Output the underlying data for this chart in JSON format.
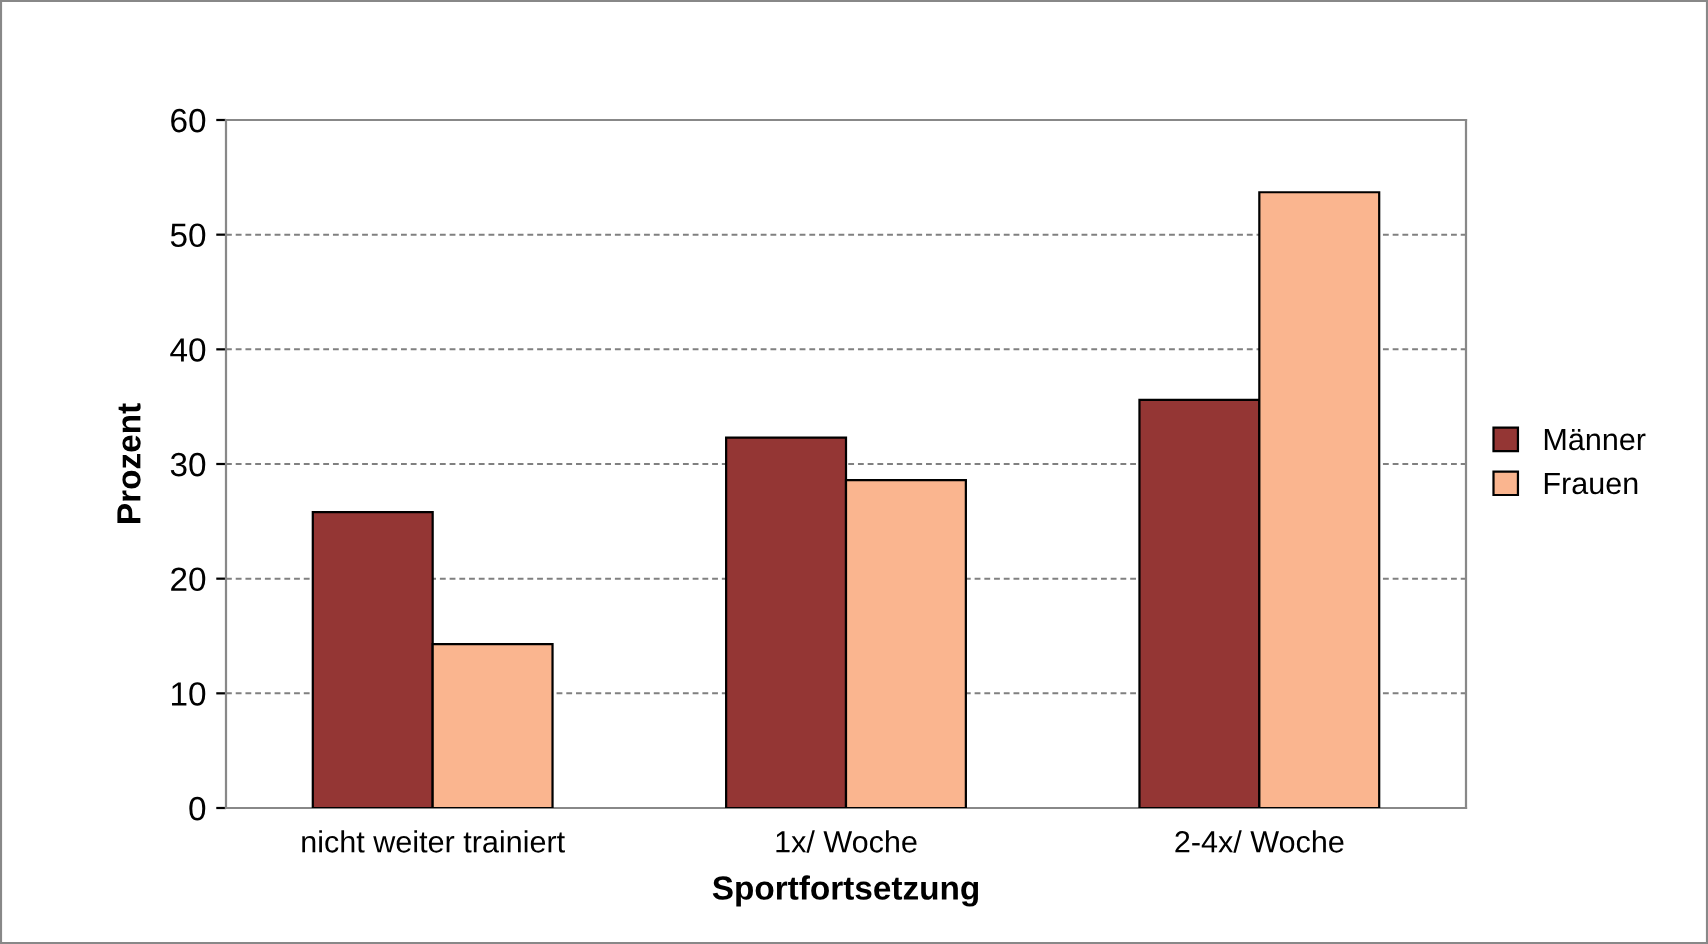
{
  "chart_data": {
    "type": "bar",
    "xlabel": "Sportfortsetzung",
    "ylabel": "Prozent",
    "categories": [
      "nicht weiter trainiert",
      "1x/ Woche",
      "2-4x/ Woche"
    ],
    "series": [
      {
        "name": "Männer",
        "color": "#943634",
        "values": [
          25.8,
          32.3,
          35.6
        ]
      },
      {
        "name": "Frauen",
        "color": "#fab58f",
        "values": [
          14.3,
          28.6,
          53.7
        ]
      }
    ],
    "ylim": [
      0,
      60
    ],
    "yticks": [
      0,
      10,
      20,
      30,
      40,
      50,
      60
    ],
    "grid": "y",
    "legend": "right"
  }
}
